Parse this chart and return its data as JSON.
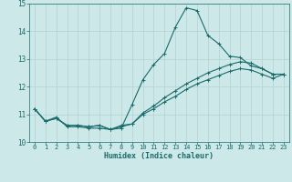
{
  "xlabel": "Humidex (Indice chaleur)",
  "ylabel": "",
  "xlim": [
    -0.5,
    23.5
  ],
  "ylim": [
    10,
    15
  ],
  "yticks": [
    10,
    11,
    12,
    13,
    14,
    15
  ],
  "xticks": [
    0,
    1,
    2,
    3,
    4,
    5,
    6,
    7,
    8,
    9,
    10,
    11,
    12,
    13,
    14,
    15,
    16,
    17,
    18,
    19,
    20,
    21,
    22,
    23
  ],
  "bg_color": "#cde8e8",
  "line_color": "#1a6b6b",
  "grid_color": "#b8d4d4",
  "line1_y": [
    11.2,
    10.75,
    10.9,
    10.55,
    10.55,
    10.5,
    10.5,
    10.45,
    10.5,
    11.35,
    12.25,
    12.8,
    13.2,
    14.15,
    14.85,
    14.75,
    13.85,
    13.55,
    13.1,
    13.05,
    12.75,
    12.65,
    12.45,
    12.45
  ],
  "line2_y": [
    11.2,
    10.75,
    10.85,
    10.6,
    10.6,
    10.55,
    10.6,
    10.45,
    10.6,
    10.65,
    11.05,
    11.3,
    11.6,
    11.85,
    12.1,
    12.3,
    12.5,
    12.65,
    12.8,
    12.9,
    12.85,
    12.65,
    12.45,
    12.45
  ],
  "line3_y": [
    11.2,
    10.75,
    10.85,
    10.6,
    10.6,
    10.55,
    10.6,
    10.45,
    10.55,
    10.65,
    11.0,
    11.2,
    11.45,
    11.65,
    11.9,
    12.1,
    12.25,
    12.4,
    12.55,
    12.65,
    12.6,
    12.45,
    12.3,
    12.45
  ],
  "tick_fontsize": 5.0,
  "xlabel_fontsize": 6.0,
  "marker_size": 2.5,
  "line_width": 0.8
}
